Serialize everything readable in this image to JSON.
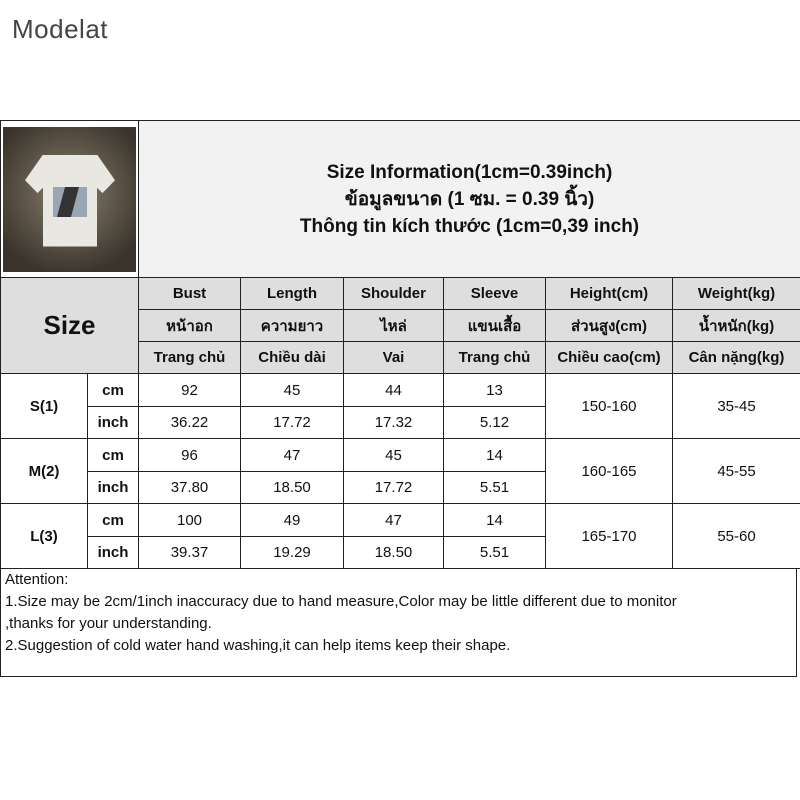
{
  "brand": "Modelat",
  "title": {
    "line1": "Size Information(1cm=0.39inch)",
    "line2": "ข้อมูลขนาด (1 ซม. = 0.39 นิ้ว)",
    "line3": "Thông tin kích thước (1cm=0,39 inch)"
  },
  "size_label": "Size",
  "columns": [
    {
      "en": "Bust",
      "th": "หน้าอก",
      "vi": "Trang chủ"
    },
    {
      "en": "Length",
      "th": "ความยาว",
      "vi": "Chiều dài"
    },
    {
      "en": "Shoulder",
      "th": "ไหล่",
      "vi": "Vai"
    },
    {
      "en": "Sleeve",
      "th": "แขนเสื้อ",
      "vi": "Trang chủ"
    },
    {
      "en": "Height(cm)",
      "th": "ส่วนสูง(cm)",
      "vi": "Chiều cao(cm)"
    },
    {
      "en": "Weight(kg)",
      "th": "น้ำหนัก(kg)",
      "vi": "Cân nặng(kg)"
    }
  ],
  "rows": [
    {
      "size": "S(1)",
      "cm_label": "cm",
      "inch_label": "inch",
      "cm": [
        "92",
        "45",
        "44",
        "13"
      ],
      "inch": [
        "36.22",
        "17.72",
        "17.32",
        "5.12"
      ],
      "height": "150-160",
      "weight": "35-45"
    },
    {
      "size": "M(2)",
      "cm_label": "cm",
      "inch_label": "inch",
      "cm": [
        "96",
        "47",
        "45",
        "14"
      ],
      "inch": [
        "37.80",
        "18.50",
        "17.72",
        "5.51"
      ],
      "height": "160-165",
      "weight": "45-55"
    },
    {
      "size": "L(3)",
      "cm_label": "cm",
      "inch_label": "inch",
      "cm": [
        "100",
        "49",
        "47",
        "14"
      ],
      "inch": [
        "39.37",
        "19.29",
        "18.50",
        "5.51"
      ],
      "height": "165-170",
      "weight": "55-60"
    }
  ],
  "attention": {
    "heading": "Attention:",
    "line1": "1.Size may be 2cm/1inch inaccuracy due to hand measure,Color may be little different due to monitor",
    "line2": ",thanks for your understanding.",
    "line3": "2.Suggestion of cold water hand washing,it can help items keep their shape."
  }
}
